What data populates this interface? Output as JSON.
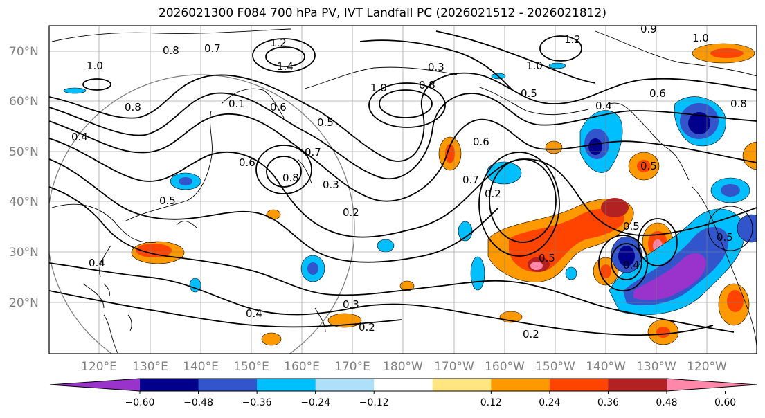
{
  "title": "2026021300 F084 700 hPa PV, IVT Landfall PC (2026021512 - 2026021812)",
  "lat_labels": [
    "70°N",
    "60°N",
    "50°N",
    "40°N",
    "30°N",
    "20°N"
  ],
  "lon_labels": [
    "120°E",
    "130°E",
    "140°E",
    "150°E",
    "160°E",
    "170°E",
    "180°W",
    "170°W",
    "160°W",
    "150°W",
    "140°W",
    "130°W",
    "120°W"
  ],
  "colorbar": {
    "colors": [
      "#9933cc",
      "#00008b",
      "#3355cc",
      "#00bfff",
      "#aee0fa",
      "#ffffff",
      "#ffe680",
      "#ff9900",
      "#ff4400",
      "#b22222",
      "#ff88aa"
    ],
    "tick_labels": [
      "−0.60",
      "−0.48",
      "−0.36",
      "−0.24",
      "−0.12",
      "0.12",
      "0.24",
      "0.36",
      "0.48",
      "0.60"
    ]
  },
  "contour_labels": [
    "1.2",
    "1.4",
    "1.0",
    "0.8",
    "0.7",
    "0.6",
    "0.5",
    "0.4",
    "0.3",
    "0.2",
    "0.1",
    "0.9"
  ]
}
